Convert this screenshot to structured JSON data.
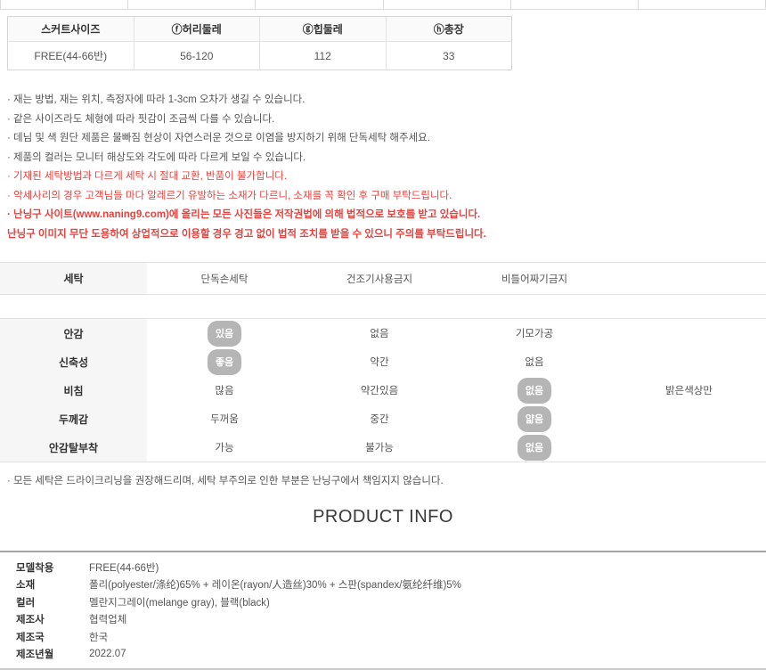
{
  "colors": {
    "accent_red": "#e8413d",
    "badge_gray": "#b5b5b5",
    "label_cell_bg": "#f6f6f6",
    "border_gray": "#e2e2e2"
  },
  "size_table": {
    "headers": [
      "스커트사이즈",
      "ⓕ허리둘레",
      "ⓖ힙둘레",
      "ⓗ총장"
    ],
    "row": [
      "FREE(44-66반)",
      "56-120",
      "112",
      "33"
    ]
  },
  "notices": {
    "gray": [
      "· 재는 방법, 재는 위치, 측정자에 따라 1-3cm 오차가 생길 수 있습니다.",
      "· 같은 사이즈라도 체형에 따라 핏감이 조금씩 다를 수 있습니다.",
      "· 데님 및 색 원단 제품은 물빠짐 현상이 자연스러운 것으로 이염을 방지하기 위해 단독세탁 해주세요.",
      "· 제품의 컬러는 모니터 해상도와 각도에 따라 다르게 보일 수 있습니다."
    ],
    "red": [
      "· 기재된 세탁방법과 다르게 세탁 시 절대 교환, 반품이 불가합니다.",
      "· 악세사리의 경우 고객님들 마다 알레르기 유발하는 소재가 다르니, 소재를 꼭 확인 후 구매 부탁드립니다."
    ],
    "red_bold": [
      "· 난닝구 사이트(www.naning9.com)에 올리는 모든 사진들은 저작권법에 의해 법적으로 보호를 받고 있습니다.",
      "난닝구 이미지 무단 도용하여 상업적으로 이용할 경우 경고 없이 법적 조치를 받을 수 있으니 주의를 부탁드립니다."
    ]
  },
  "care_table": {
    "label": "세탁",
    "options": [
      "단독손세탁",
      "건조기사용금지",
      "비틀어짜기금지",
      ""
    ]
  },
  "attribute_table": {
    "rows": [
      {
        "label": "안감",
        "options": [
          "있음",
          "없음",
          "기모가공",
          ""
        ],
        "selected": 0
      },
      {
        "label": "신축성",
        "options": [
          "좋음",
          "약간",
          "없음",
          ""
        ],
        "selected": 0
      },
      {
        "label": "비침",
        "options": [
          "많음",
          "약간있음",
          "없음",
          "밝은색상만"
        ],
        "selected": 2
      },
      {
        "label": "두께감",
        "options": [
          "두꺼움",
          "중간",
          "얇음",
          ""
        ],
        "selected": 2
      },
      {
        "label": "안감탈부착",
        "options": [
          "가능",
          "불가능",
          "없음",
          ""
        ],
        "selected": 2
      }
    ]
  },
  "care_note": "· 모든 세탁은 드라이크리닝을 권장해드리며, 세탁 부주의로 인한 부분은 난닝구에서 책임지지 않습니다.",
  "product_info": {
    "title": "PRODUCT INFO",
    "rows": [
      {
        "label": "모델착용",
        "value": "FREE(44-66반)"
      },
      {
        "label": "소재",
        "value": "폴리(polyester/涤纶)65% + 레이온(rayon/人造丝)30% + 스판(spandex/氨纶纤维)5%"
      },
      {
        "label": "컬러",
        "value": "멜란지그레이(melange gray), 블랙(black)"
      },
      {
        "label": "제조사",
        "value": "협력업체"
      },
      {
        "label": "제조국",
        "value": "한국"
      },
      {
        "label": "제조년월",
        "value": "2022.07"
      }
    ]
  }
}
